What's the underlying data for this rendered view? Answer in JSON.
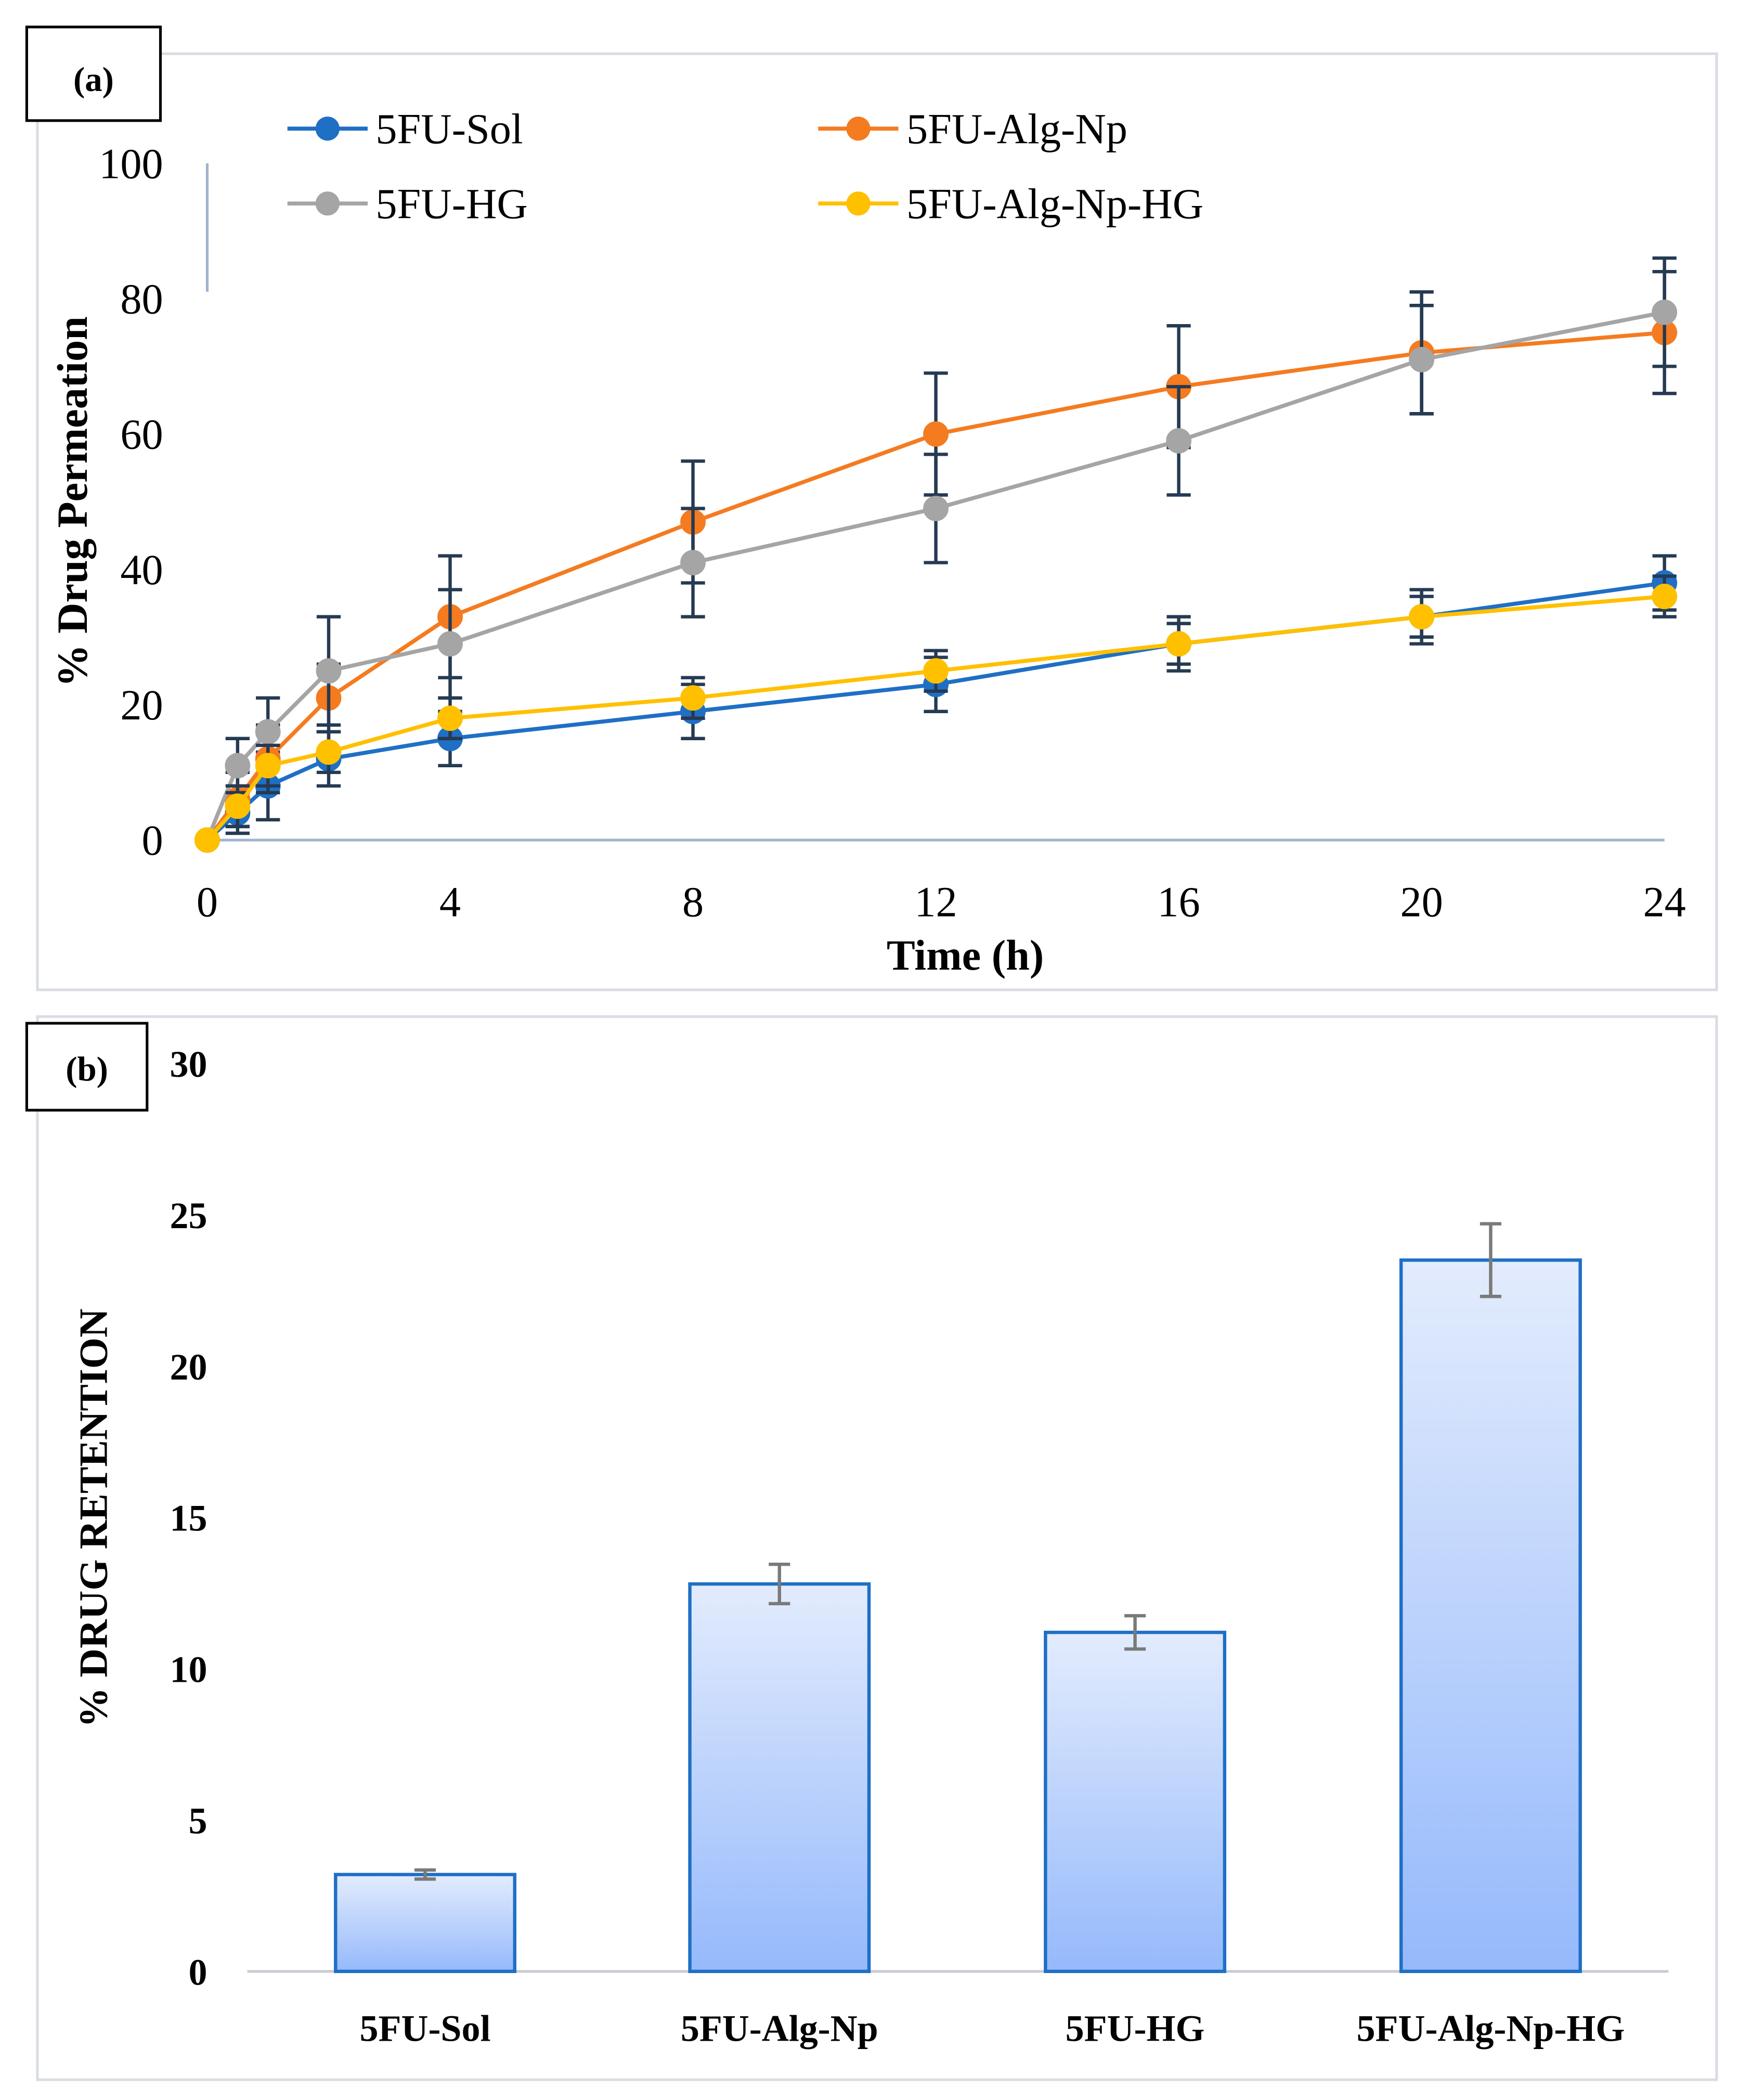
{
  "chart_data": [
    {
      "type": "line",
      "panel_label": "(a)",
      "title": "",
      "xlabel": "Time (h)",
      "ylabel": "% Drug Permeation",
      "xlim": [
        0,
        24
      ],
      "ylim": [
        0,
        100
      ],
      "xticks": [
        0,
        4,
        8,
        12,
        16,
        20,
        24
      ],
      "yticks": [
        0,
        20,
        40,
        60,
        80,
        100
      ],
      "grid": false,
      "legend_position": "top",
      "x": [
        0,
        0.5,
        1,
        2,
        4,
        8,
        12,
        16,
        20,
        24
      ],
      "series": [
        {
          "name": "5FU-Sol",
          "color": "#1f6fc5",
          "values": [
            0,
            4,
            8,
            12,
            15,
            19,
            23,
            29,
            33,
            38
          ],
          "errors": [
            0,
            3,
            5,
            4,
            4,
            4,
            4,
            4,
            4,
            4
          ]
        },
        {
          "name": "5FU-Alg-Np",
          "color": "#f47b20",
          "values": [
            0,
            6,
            12,
            21,
            33,
            47,
            60,
            67,
            72,
            75
          ],
          "errors": [
            0,
            4,
            5,
            5,
            9,
            9,
            9,
            9,
            9,
            9
          ]
        },
        {
          "name": "5FU-HG",
          "color": "#a5a5a5",
          "values": [
            0,
            11,
            16,
            25,
            29,
            41,
            49,
            59,
            71,
            78
          ],
          "errors": [
            0,
            4,
            5,
            8,
            8,
            8,
            8,
            8,
            8,
            8
          ]
        },
        {
          "name": "5FU-Alg-Np-HG",
          "color": "#ffc000",
          "values": [
            0,
            5,
            11,
            13,
            18,
            21,
            25,
            29,
            33,
            36
          ],
          "errors": [
            0,
            3,
            3,
            3,
            3,
            3,
            3,
            3,
            3,
            3
          ]
        }
      ]
    },
    {
      "type": "bar",
      "panel_label": "(b)",
      "title": "",
      "xlabel": "",
      "ylabel": "% DRUG RETENTION",
      "ylim": [
        0,
        30
      ],
      "yticks": [
        0,
        5,
        10,
        15,
        20,
        25,
        30
      ],
      "grid": false,
      "categories": [
        "5FU-Sol",
        "5FU-Alg-Np",
        "5FU-HG",
        "5FU-Alg-Np-HG"
      ],
      "values": [
        3.2,
        12.8,
        11.2,
        23.5
      ],
      "errors": [
        0.15,
        0.65,
        0.55,
        1.2
      ],
      "bar_color": "#1f6fc5"
    }
  ]
}
